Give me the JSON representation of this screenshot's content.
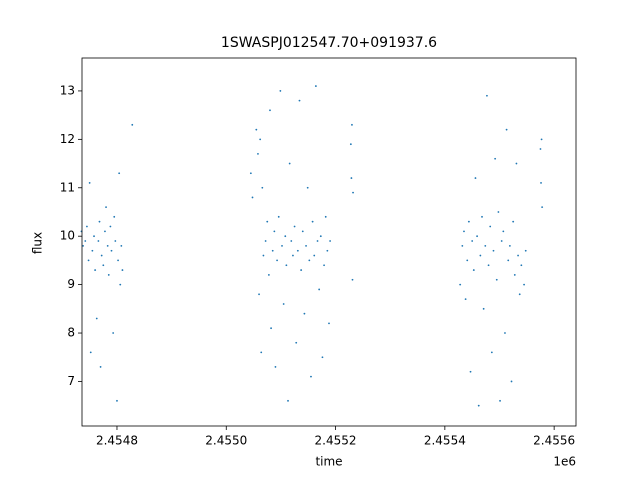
{
  "chart_data": {
    "type": "scatter",
    "title": "1SWASPJ012547.70+091937.6",
    "x_label": "time",
    "y_label": "flux",
    "x_offset_label": "1e6",
    "color": "#1f77b4",
    "xlim": [
      2.454736,
      2.45564
    ],
    "ylim": [
      6.08,
      13.68
    ],
    "xticks": [
      2.4548,
      {
        "value": 2.455,
        "label": "2.4550"
      },
      2.4552,
      2.4554,
      2.4556
    ],
    "yticks": [
      7,
      8,
      9,
      10,
      11,
      12,
      13
    ],
    "x": [
      2.454735,
      2.454738,
      2.454742,
      2.454745,
      2.454748,
      2.45475,
      2.454752,
      2.454755,
      2.454758,
      2.45476,
      2.454763,
      2.454766,
      2.454768,
      2.45477,
      2.454772,
      2.454775,
      2.454778,
      2.45478,
      2.454783,
      2.454785,
      2.454788,
      2.45479,
      2.454793,
      2.454795,
      2.454797,
      2.4548,
      2.454802,
      2.454804,
      2.454806,
      2.454808,
      2.45481,
      2.454828,
      2.455045,
      2.455048,
      2.455055,
      2.455058,
      2.45506,
      2.455062,
      2.455064,
      2.455066,
      2.455068,
      2.455072,
      2.455075,
      2.455078,
      2.45508,
      2.455082,
      2.455085,
      2.455088,
      2.45509,
      2.455093,
      2.455096,
      2.455099,
      2.455102,
      2.455105,
      2.455108,
      2.45511,
      2.455113,
      2.455116,
      2.455119,
      2.455122,
      2.455125,
      2.455128,
      2.455131,
      2.455134,
      2.455137,
      2.45514,
      2.455143,
      2.455146,
      2.455149,
      2.455152,
      2.455155,
      2.455158,
      2.455161,
      2.455164,
      2.455167,
      2.45517,
      2.455173,
      2.455176,
      2.455179,
      2.455182,
      2.455185,
      2.455188,
      2.45519,
      2.455228,
      2.455229,
      2.45523,
      2.455231,
      2.455232,
      2.455428,
      2.455432,
      2.455435,
      2.455438,
      2.455441,
      2.455444,
      2.455447,
      2.45545,
      2.455453,
      2.455456,
      2.455459,
      2.455462,
      2.455465,
      2.455468,
      2.455471,
      2.455474,
      2.455477,
      2.45548,
      2.455483,
      2.455486,
      2.455489,
      2.455492,
      2.455495,
      2.455498,
      2.455501,
      2.455504,
      2.455507,
      2.45551,
      2.455513,
      2.455516,
      2.455519,
      2.455522,
      2.455525,
      2.455528,
      2.455531,
      2.455534,
      2.455537,
      2.45554,
      2.455545,
      2.455548,
      2.455575,
      2.455576,
      2.455577,
      2.455578
    ],
    "values": [
      10.1,
      9.8,
      9.9,
      10.2,
      9.5,
      11.1,
      7.6,
      9.7,
      10.0,
      9.3,
      8.3,
      9.9,
      10.3,
      7.3,
      9.6,
      9.4,
      10.1,
      10.6,
      9.8,
      9.2,
      10.2,
      9.7,
      8.0,
      10.4,
      9.9,
      6.6,
      9.5,
      11.3,
      9.0,
      9.8,
      9.3,
      12.3,
      11.3,
      10.8,
      12.2,
      11.7,
      8.8,
      12.0,
      7.6,
      11.0,
      9.6,
      9.9,
      10.3,
      9.2,
      12.6,
      8.1,
      9.7,
      10.1,
      7.3,
      9.5,
      10.4,
      13.0,
      9.8,
      8.6,
      10.0,
      9.4,
      6.6,
      11.5,
      9.9,
      9.6,
      10.2,
      7.8,
      9.7,
      12.8,
      9.3,
      10.1,
      8.4,
      9.8,
      11.0,
      9.5,
      7.1,
      10.3,
      9.6,
      13.1,
      9.9,
      8.9,
      10.0,
      7.5,
      9.4,
      10.4,
      9.7,
      8.2,
      9.9,
      11.9,
      11.2,
      12.3,
      9.1,
      10.9,
      9.0,
      9.8,
      10.1,
      8.7,
      9.5,
      10.3,
      7.2,
      9.9,
      9.3,
      11.2,
      10.0,
      6.5,
      9.6,
      10.4,
      8.5,
      9.8,
      12.9,
      9.4,
      10.2,
      7.6,
      9.7,
      11.6,
      9.1,
      10.5,
      6.6,
      9.9,
      10.1,
      8.0,
      12.2,
      9.5,
      9.8,
      7.0,
      10.3,
      9.2,
      11.5,
      9.6,
      8.8,
      9.4,
      9.0,
      9.7,
      11.8,
      11.1,
      12.0,
      10.6
    ]
  }
}
